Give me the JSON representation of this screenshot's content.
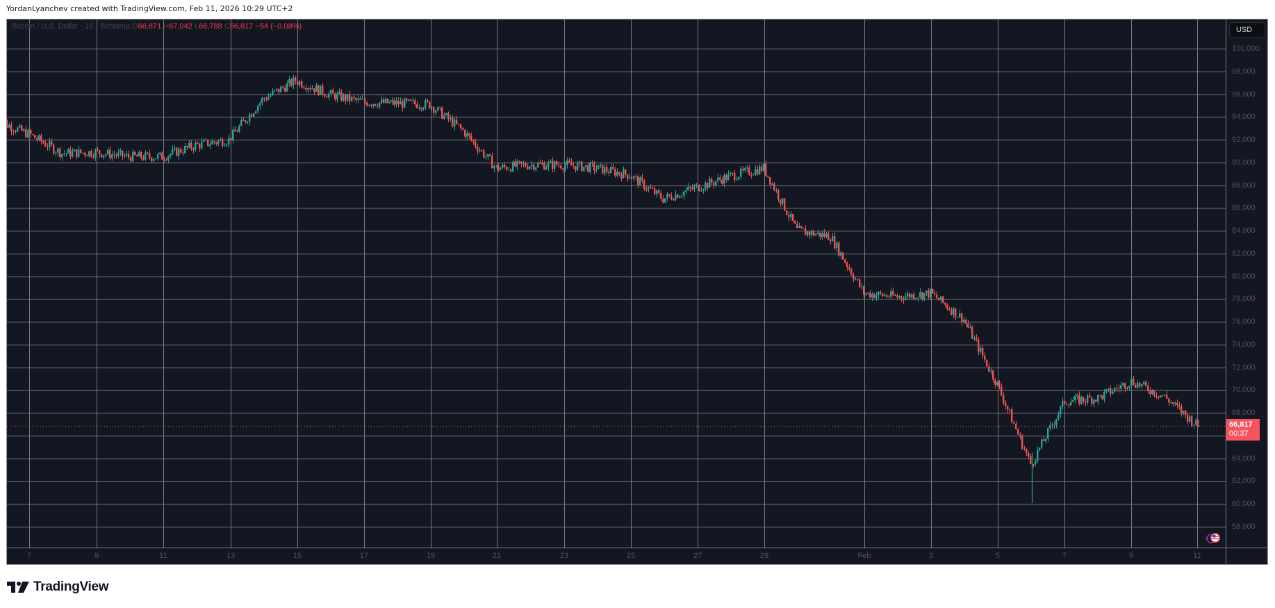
{
  "header": {
    "credit": "YordanLyanchev created with TradingView.com, Feb 11, 2026 10:29 UTC+2"
  },
  "legend": {
    "symbol": "Bitcoin / U.S. Dollar · 15 · Bitstamp",
    "open_label": "O",
    "open": "66,871",
    "high_label": "H",
    "high": "67,042",
    "low_label": "L",
    "low": "66,788",
    "close_label": "C",
    "close": "66,817",
    "change": "−54 (−0.08%)"
  },
  "price_axis": {
    "currency_button": "USD",
    "current_price": "66,817",
    "countdown": "00:37",
    "current_price_color": "#f7525f"
  },
  "footer": {
    "brand": "TradingView"
  },
  "colors": {
    "background": "#131722",
    "grid": "#787b86",
    "up": "#26a69a",
    "down": "#ef5350",
    "axis_text": "#4c525e"
  },
  "chart_data": {
    "type": "candlestick",
    "title": "Bitcoin / U.S. Dollar · 15 · Bitstamp",
    "interval": "15",
    "exchange": "Bitstamp",
    "ohlc_last": {
      "open": 66871,
      "high": 67042,
      "low": 66788,
      "close": 66817,
      "change": -54,
      "change_pct": -0.08
    },
    "y_ticks": [
      "100,000",
      "98,000",
      "96,000",
      "94,000",
      "92,000",
      "90,000",
      "88,000",
      "86,000",
      "84,000",
      "82,000",
      "80,000",
      "78,000",
      "76,000",
      "74,000",
      "72,000",
      "70,000",
      "68,000",
      "64,000",
      "62,000",
      "60,000",
      "58,000"
    ],
    "ylim": [
      57000,
      101000
    ],
    "x_ticks": [
      "7",
      "9",
      "11",
      "13",
      "15",
      "17",
      "19",
      "21",
      "23",
      "25",
      "27",
      "29",
      "Feb",
      "3",
      "5",
      "7",
      "9",
      "11"
    ],
    "grid": true,
    "approx_price_path": {
      "x": [
        "Jan 6",
        "Jan 7",
        "Jan 8",
        "Jan 9",
        "Jan 10",
        "Jan 11",
        "Jan 12",
        "Jan 13",
        "Jan 14",
        "Jan 15",
        "Jan 16",
        "Jan 17",
        "Jan 18",
        "Jan 19",
        "Jan 20",
        "Jan 21",
        "Jan 22",
        "Jan 23",
        "Jan 24",
        "Jan 25",
        "Jan 26",
        "Jan 27",
        "Jan 28",
        "Jan 29",
        "Jan 30",
        "Jan 31",
        "Feb 1",
        "Feb 2",
        "Feb 3",
        "Feb 4",
        "Feb 5",
        "Feb 6",
        "Feb 7",
        "Feb 8",
        "Feb 9",
        "Feb 10",
        "Feb 11"
      ],
      "close": [
        93800,
        92500,
        90800,
        90900,
        90500,
        90500,
        91500,
        92000,
        95500,
        97200,
        96000,
        95300,
        95200,
        95100,
        92800,
        89500,
        89800,
        89800,
        89500,
        88900,
        86800,
        87800,
        88800,
        89500,
        84000,
        83500,
        78500,
        78200,
        78500,
        76200,
        70500,
        63500,
        69000,
        69300,
        70800,
        69400,
        66817
      ]
    },
    "notable_points": {
      "high": 97900,
      "high_date": "Jan 14",
      "low": 60100,
      "low_date": "Feb 6"
    }
  }
}
